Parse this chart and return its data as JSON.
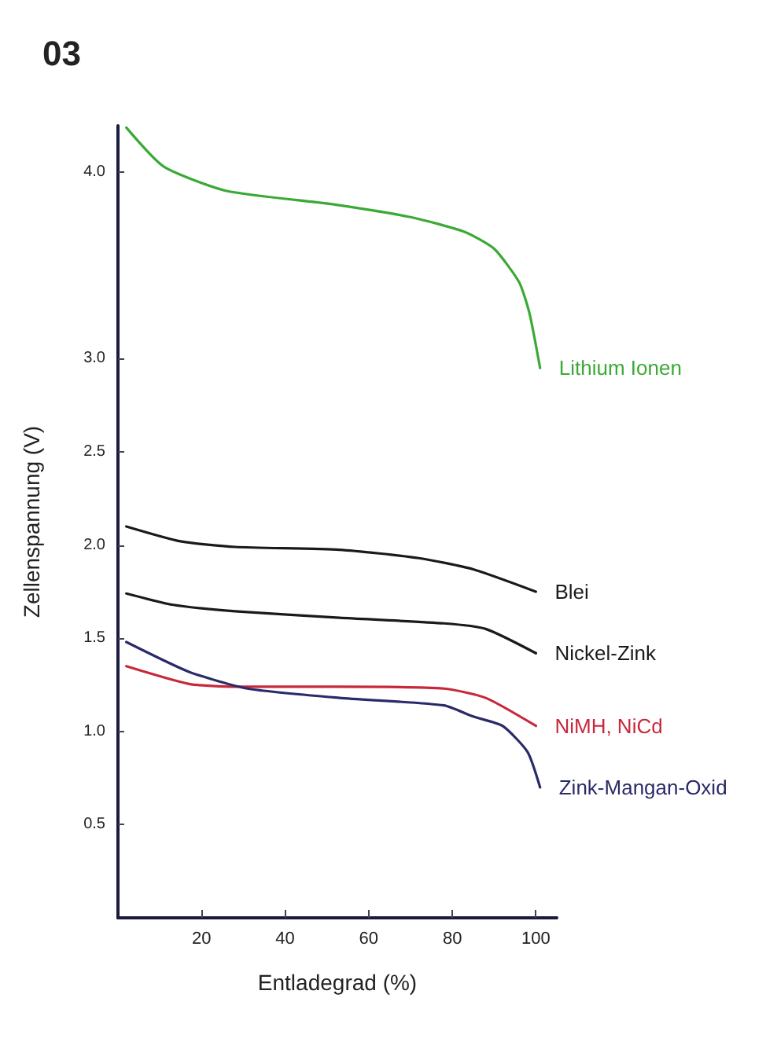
{
  "chart_data": {
    "type": "line",
    "title": "03",
    "xlabel": "Entladegrad (%)",
    "ylabel": "Zellenspannung (V)",
    "xlim": [
      0,
      105
    ],
    "xticks": [
      20,
      40,
      60,
      80,
      100
    ],
    "ylim": [
      0,
      4.25
    ],
    "yticks": [
      0.5,
      {
        "value": 1,
        "label": "1.0"
      },
      1.5,
      {
        "value": 2,
        "label": "2.0"
      },
      2.5,
      {
        "value": 3,
        "label": "3.0"
      },
      {
        "value": 4,
        "label": "4.0"
      }
    ],
    "marker": "none",
    "line_style": "solid",
    "grid": false,
    "series": [
      {
        "name": "Lithium Ionen",
        "color": "#3aaa35",
        "x": [
          2,
          11,
          26,
          51,
          70,
          83,
          90,
          96,
          98.5,
          101
        ],
        "values": [
          4.24,
          4.03,
          3.9,
          3.83,
          3.76,
          3.68,
          3.59,
          3.41,
          3.24,
          2.95
        ]
      },
      {
        "name": "Blei",
        "color": "#1a1a1a",
        "x": [
          2,
          15,
          28,
          53,
          72,
          85,
          100
        ],
        "values": [
          2.1,
          2.02,
          1.99,
          1.975,
          1.93,
          1.87,
          1.75
        ]
      },
      {
        "name": "Nickel-Zink",
        "color": "#1a1a1a",
        "x": [
          2,
          13,
          28,
          53,
          78,
          88,
          100
        ],
        "values": [
          1.74,
          1.68,
          1.645,
          1.61,
          1.58,
          1.55,
          1.42
        ]
      },
      {
        "name": "NiMH, NiCd",
        "color": "#c8283c",
        "x": [
          2,
          17,
          28,
          53,
          78,
          88,
          100
        ],
        "values": [
          1.35,
          1.255,
          1.24,
          1.24,
          1.23,
          1.18,
          1.03
        ]
      },
      {
        "name": "Zink-Mangan-Oxid",
        "color": "#2a2a6a",
        "x": [
          2,
          17,
          31,
          53,
          78,
          85,
          92,
          98,
          101
        ],
        "values": [
          1.48,
          1.32,
          1.23,
          1.18,
          1.14,
          1.08,
          1.03,
          0.89,
          0.7
        ]
      }
    ]
  }
}
